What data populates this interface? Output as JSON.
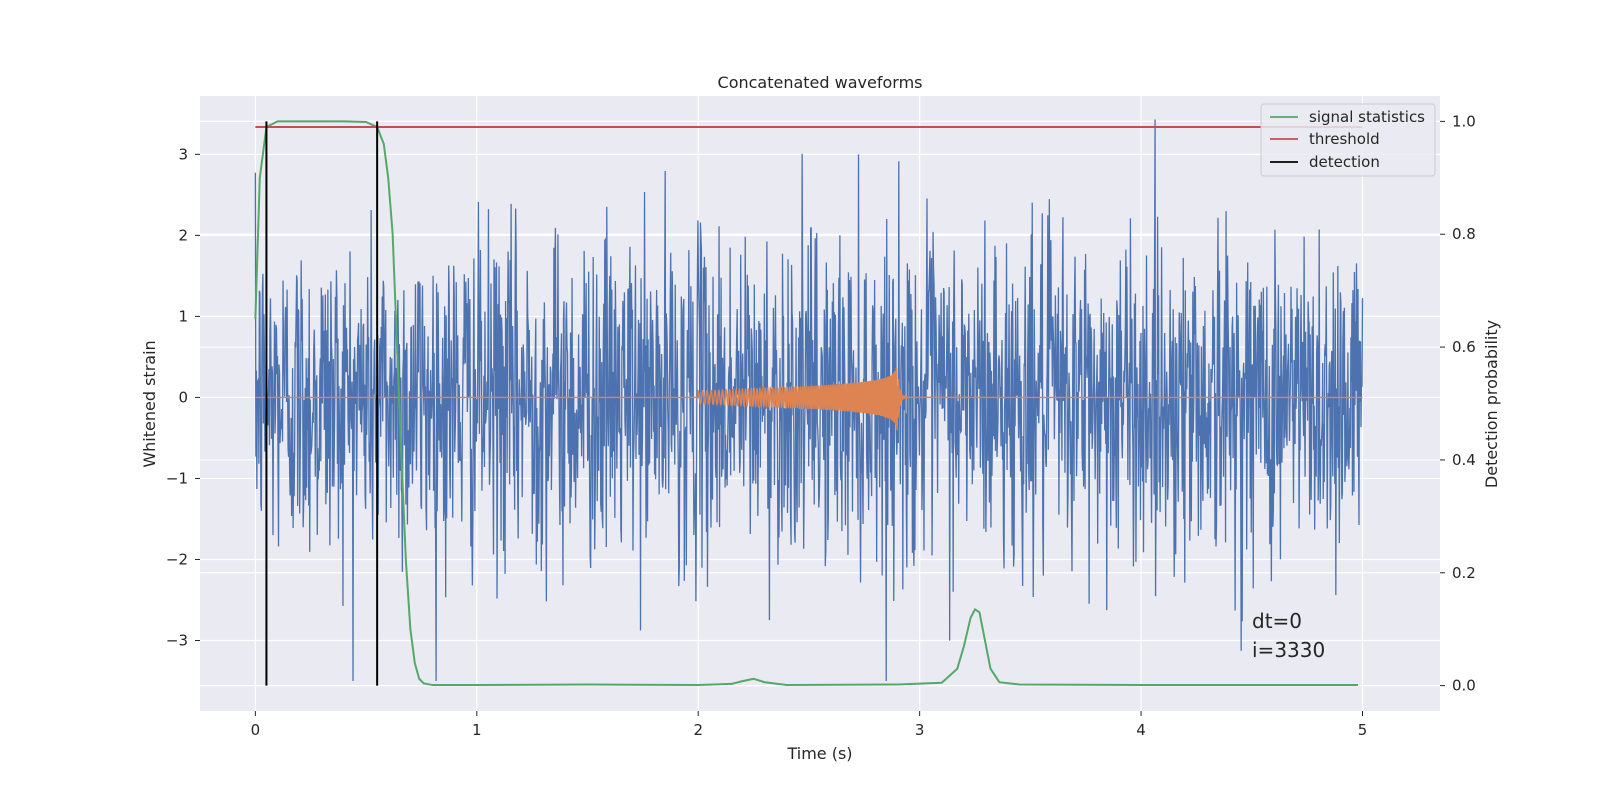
{
  "chart_data": {
    "type": "line",
    "title": "Concatenated waveforms",
    "xlabel": "Time (s)",
    "ylabel_left": "Whitened strain",
    "ylabel_right": "Detection probability",
    "xlim": [
      -0.25,
      5.35
    ],
    "ylim_left": [
      -3.87,
      3.72
    ],
    "ylim_right": [
      -0.045,
      1.045
    ],
    "grid": true,
    "legend_position": "top-right",
    "x_ticks": [
      0,
      1,
      2,
      3,
      4,
      5
    ],
    "y_ticks_left": [
      -3,
      -2,
      -1,
      0,
      1,
      2,
      3
    ],
    "y_ticks_right": [
      0.0,
      0.2,
      0.4,
      0.6,
      0.8,
      1.0
    ],
    "x_tick_labels": [
      "0",
      "1",
      "2",
      "3",
      "4",
      "5"
    ],
    "y_tick_labels_left": [
      "−3",
      "−2",
      "−1",
      "0",
      "1",
      "2",
      "3"
    ],
    "y_tick_labels_right": [
      "0.0",
      "0.2",
      "0.4",
      "0.6",
      "0.8",
      "1.0"
    ],
    "colors": {
      "noise": "#4c72b0",
      "waveform": "#dd8452",
      "signal_statistics": "#55a868",
      "threshold": "#c44e52",
      "detection": "#000000",
      "plot_bg": "#eaeaf2",
      "grid": "#ffffff"
    },
    "noise_strain": {
      "t_start": 0.0,
      "t_end": 5.0,
      "typical_amplitude": 1.0,
      "min": -3.5,
      "max": 3.6
    },
    "injected_waveform": {
      "t_start": 2.0,
      "t_merger": 2.9,
      "start_amplitude": 0.08,
      "peak_amplitude": 0.45
    },
    "series": [
      {
        "name": "signal statistics",
        "axis": "right",
        "x": [
          0.0,
          0.02,
          0.05,
          0.1,
          0.2,
          0.4,
          0.5,
          0.55,
          0.58,
          0.6,
          0.62,
          0.64,
          0.66,
          0.68,
          0.7,
          0.72,
          0.74,
          0.76,
          0.8,
          1.0,
          1.5,
          2.0,
          2.15,
          2.2,
          2.25,
          2.3,
          2.4,
          2.9,
          3.1,
          3.17,
          3.2,
          3.23,
          3.25,
          3.27,
          3.29,
          3.32,
          3.36,
          3.45,
          4.0,
          4.5,
          4.98
        ],
        "y": [
          0.65,
          0.9,
          0.99,
          1.0,
          1.0,
          1.0,
          0.999,
          0.99,
          0.96,
          0.9,
          0.8,
          0.6,
          0.4,
          0.22,
          0.1,
          0.04,
          0.012,
          0.004,
          0.001,
          0.001,
          0.002,
          0.001,
          0.003,
          0.008,
          0.012,
          0.006,
          0.001,
          0.002,
          0.005,
          0.03,
          0.07,
          0.12,
          0.135,
          0.13,
          0.09,
          0.03,
          0.006,
          0.002,
          0.001,
          0.001,
          0.001
        ]
      },
      {
        "name": "threshold",
        "axis": "right",
        "x": [
          0.0,
          5.0
        ],
        "y": [
          0.99,
          0.99
        ]
      }
    ],
    "detections": [
      0.05,
      0.55
    ],
    "detection_label": "detection",
    "annotations": [
      "dt=0",
      "i=3330"
    ]
  }
}
